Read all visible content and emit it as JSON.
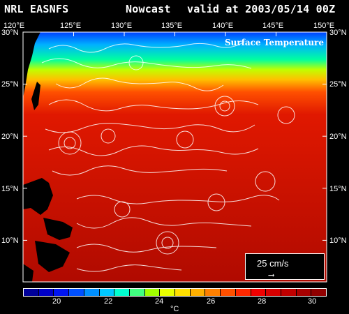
{
  "header": {
    "product": "NRL EASNFS",
    "mode": "Nowcast",
    "valid": "valid at 2003/05/14 00Z"
  },
  "map": {
    "title": "Surface Temperature",
    "lon_labels": [
      "120°E",
      "125°E",
      "130°E",
      "135°E",
      "140°E",
      "145°E",
      "150°E"
    ],
    "lat_labels": [
      "30°N",
      "25°N",
      "20°N",
      "15°N",
      "10°N"
    ],
    "lon_range": [
      120,
      150
    ],
    "lat_range": [
      6,
      30
    ]
  },
  "legend": {
    "speed_label": "25 cm/s",
    "arrow": "⟶"
  },
  "colorbar": {
    "ticks": [
      "20",
      "22",
      "24",
      "26",
      "28",
      "30"
    ],
    "unit": "°C",
    "colors": [
      "#00009a",
      "#0000c8",
      "#0014f0",
      "#0050ff",
      "#0090ff",
      "#00c8ff",
      "#00ffd0",
      "#40ff80",
      "#a0ff00",
      "#e8ff00",
      "#ffe000",
      "#ffb000",
      "#ff8000",
      "#ff5000",
      "#ff2800",
      "#f00000",
      "#d80000",
      "#c00000",
      "#a80000",
      "#900000"
    ]
  },
  "colors": {
    "warm": "#c81200",
    "background": "#000000",
    "vectors": "#ffffff"
  }
}
